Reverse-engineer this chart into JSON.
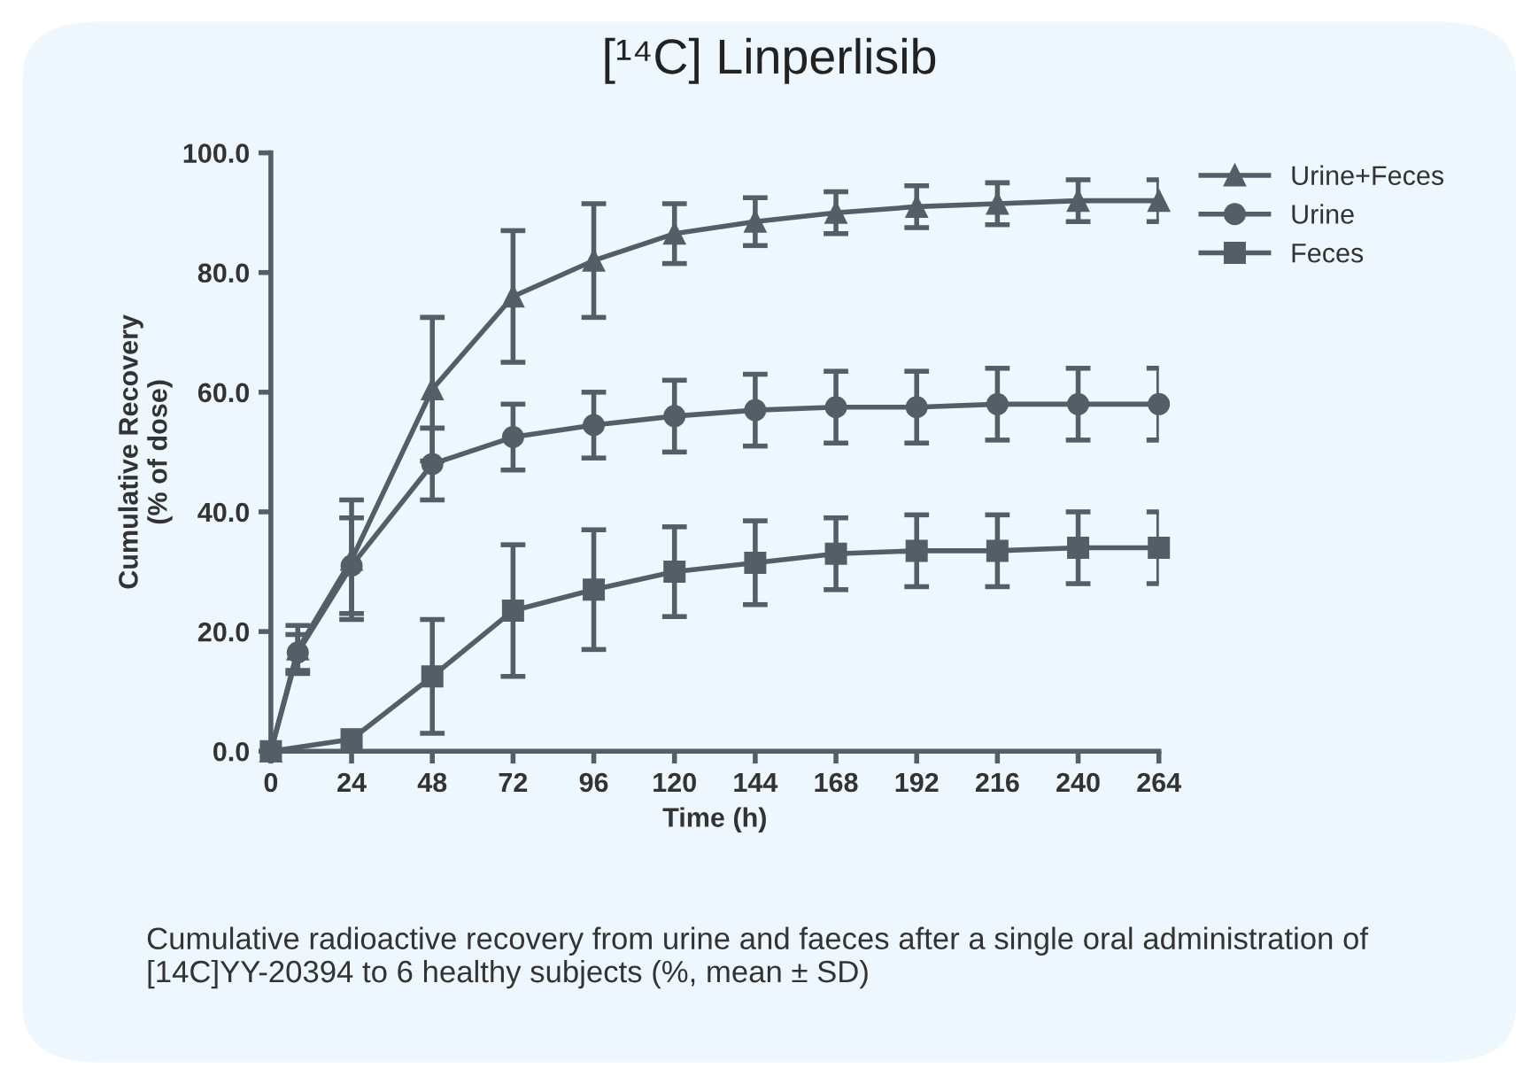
{
  "chart_data": {
    "type": "line",
    "title": "[¹⁴C] Linperlisib",
    "xlabel": "Time (h)",
    "ylabel": "Cumulative Recovery\n(% of dose)",
    "xlim": [
      0,
      264
    ],
    "xticks": [
      0,
      24,
      48,
      72,
      96,
      120,
      144,
      168,
      192,
      216,
      240,
      264
    ],
    "ylim": [
      0,
      100
    ],
    "yticks": [
      {
        "value": 0,
        "label": "0.0"
      },
      {
        "value": 20,
        "label": "20.0"
      },
      {
        "value": 40,
        "label": "40.0"
      },
      {
        "value": 60,
        "label": "60.0"
      },
      {
        "value": 80,
        "label": "80.0"
      },
      {
        "value": 100,
        "label": "100.0"
      }
    ],
    "grid": false,
    "legend": "top right",
    "series": [
      {
        "name": "Urine+Feces",
        "color": "#555e66",
        "marker": "triangle",
        "x": [
          0,
          8,
          24,
          48,
          72,
          96,
          120,
          144,
          168,
          192,
          216,
          240,
          264
        ],
        "values": [
          0,
          17,
          32,
          60.5,
          76,
          82,
          86.5,
          88.5,
          90,
          91,
          91.5,
          92,
          92
        ],
        "errors": [
          null,
          4,
          10,
          12,
          11,
          9.5,
          5,
          4,
          3.5,
          3.5,
          3.5,
          3.5,
          3.5
        ]
      },
      {
        "name": "Urine",
        "color": "#555e66",
        "marker": "circle",
        "x": [
          0,
          8,
          24,
          48,
          72,
          96,
          120,
          144,
          168,
          192,
          216,
          240,
          264
        ],
        "values": [
          0,
          16.5,
          31,
          48,
          52.5,
          54.5,
          56,
          57,
          57.5,
          57.5,
          58,
          58,
          58
        ],
        "errors": [
          null,
          3,
          8,
          6,
          5.5,
          5.5,
          6,
          6,
          6,
          6,
          6,
          6,
          6
        ]
      },
      {
        "name": "Feces",
        "color": "#555e66",
        "marker": "square",
        "x": [
          0,
          24,
          48,
          72,
          96,
          120,
          144,
          168,
          192,
          216,
          240,
          264
        ],
        "values": [
          0,
          2,
          12.5,
          23.5,
          27,
          30,
          31.5,
          33,
          33.5,
          33.5,
          34,
          34
        ],
        "errors": [
          null,
          null,
          9.5,
          11,
          10,
          7.5,
          7,
          6,
          6,
          6,
          6,
          6
        ]
      }
    ],
    "annotations": [
      "Cumulative radioactive recovery from urine and faeces after a single oral administration of [14C]YY-20394 to 6 healthy subjects (%, mean ± SD)"
    ]
  }
}
